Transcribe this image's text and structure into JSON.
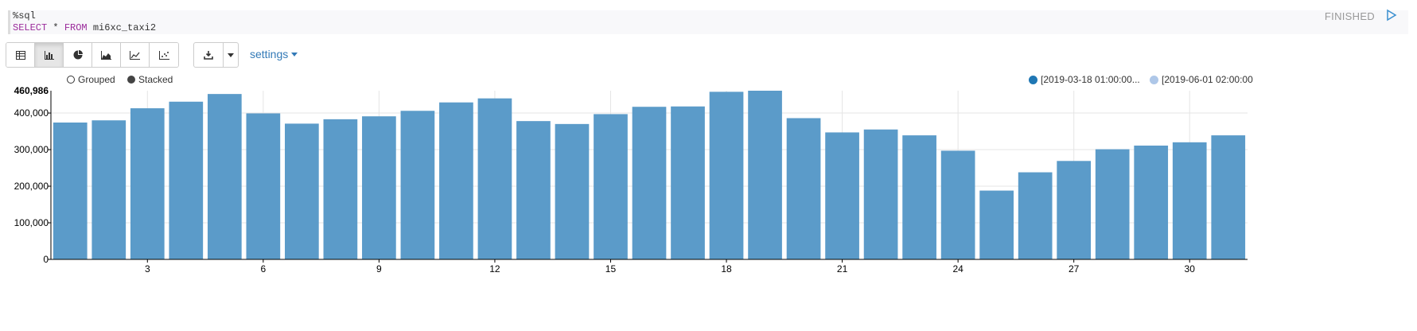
{
  "editor": {
    "directive": "%sql",
    "kw_select": "SELECT",
    "star": " * ",
    "kw_from": "FROM",
    "table": " mi6xc_taxi2"
  },
  "status": {
    "label": "FINISHED"
  },
  "toolbar": {
    "buttons": [
      {
        "icon": "table-icon",
        "active": false
      },
      {
        "icon": "bar-chart-icon",
        "active": true
      },
      {
        "icon": "pie-chart-icon",
        "active": false
      },
      {
        "icon": "area-chart-icon",
        "active": false
      },
      {
        "icon": "line-chart-icon",
        "active": false
      },
      {
        "icon": "scatter-chart-icon",
        "active": false
      }
    ],
    "settings_label": "settings"
  },
  "controls": {
    "grouped": "Grouped",
    "stacked": "Stacked",
    "stacked_selected": true
  },
  "legend": [
    {
      "label": "[2019-03-18 01:00:00...",
      "color": "#1f77b4"
    },
    {
      "label": "[2019-06-01 02:00:00",
      "color": "#aec7e8"
    }
  ],
  "colors": {
    "bar": "#5b9bc9",
    "accent": "#337ab7"
  },
  "chart_data": {
    "type": "bar",
    "ymax_label": "460,986",
    "ylim": [
      0,
      460986
    ],
    "yticks": [
      0,
      100000,
      200000,
      300000,
      400000
    ],
    "ytick_labels": [
      "0",
      "100,000",
      "200,000",
      "300,000",
      "400,000"
    ],
    "xticks": [
      3,
      6,
      9,
      12,
      15,
      18,
      21,
      24,
      27,
      30
    ],
    "grid": true,
    "legend_position": "top-right",
    "series": [
      {
        "x": [
          1,
          2,
          3,
          4,
          5,
          6,
          7,
          8,
          9,
          10,
          11,
          12,
          13,
          14,
          15,
          16,
          17,
          18,
          19,
          20,
          21,
          22,
          23,
          24,
          25,
          26,
          27,
          28,
          29,
          30,
          31
        ],
        "values": [
          374000,
          380000,
          413000,
          431000,
          452000,
          399000,
          371000,
          383000,
          391000,
          406000,
          429000,
          440000,
          378000,
          370000,
          397000,
          417000,
          418000,
          458000,
          460986,
          386000,
          347000,
          355000,
          339000,
          297000,
          188000,
          238000,
          269000,
          301000,
          311000,
          320000,
          339000
        ]
      }
    ]
  }
}
